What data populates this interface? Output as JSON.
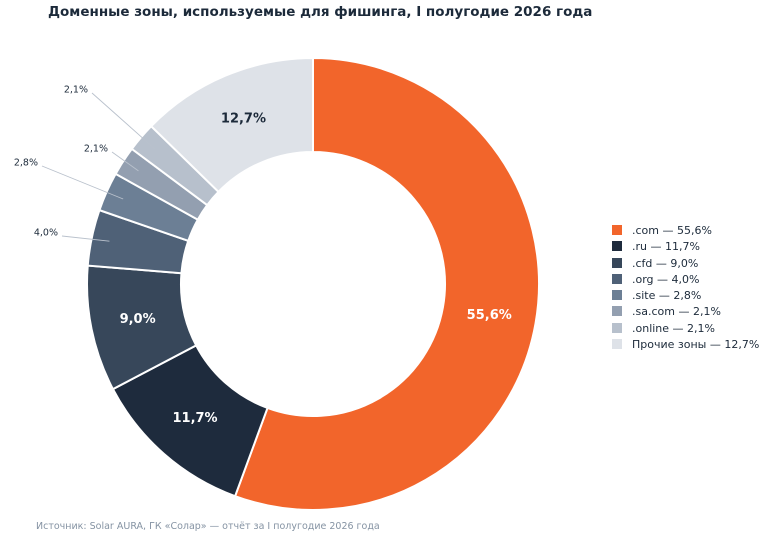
{
  "chart_data": {
    "type": "pie",
    "title": "Доменные зоны, используемые для фишинга, I полугодие 2026 года",
    "categories": [
      ".com",
      ".ru",
      ".cfd",
      ".org",
      ".site",
      ".sa.com",
      ".online",
      "Прочие зоны"
    ],
    "values": [
      55.6,
      11.7,
      9.0,
      4.0,
      2.8,
      2.1,
      2.1,
      12.7
    ],
    "value_labels": [
      "55,6%",
      "11,7%",
      "9,0%",
      "4,0%",
      "2,8%",
      "2,1%",
      "2,1%",
      "12,7%"
    ],
    "legend_labels": [
      ".com — 55,6%",
      ".ru — 11,7%",
      ".cfd — 9,0%",
      ".org — 4,0%",
      ".site — 2,8%",
      ".sa.com — 2,1%",
      ".online — 2,1%",
      "Прочие зоны — 12,7%"
    ],
    "colors": [
      "#f2652b",
      "#1e2b3d",
      "#37475a",
      "#4f6177",
      "#6c7f95",
      "#939fb0",
      "#b7c0cc",
      "#dee2e8"
    ],
    "legend_position": "right",
    "start": "top",
    "direction": "clockwise",
    "donut": true
  },
  "source": "Источник: Solar AURA, ГК «Солар» — отчёт за I полугодие 2026 года"
}
